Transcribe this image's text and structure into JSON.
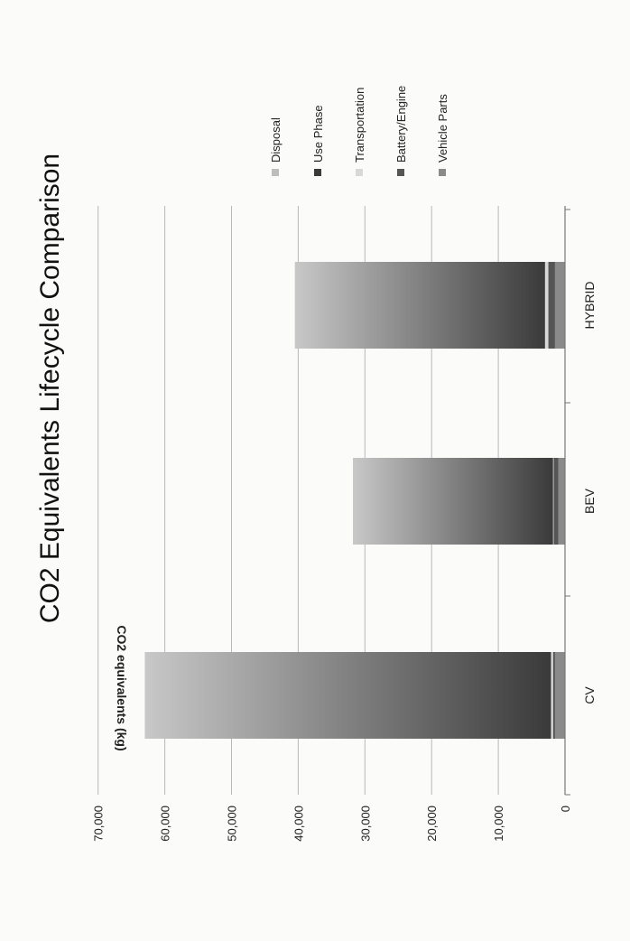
{
  "chart_data": {
    "type": "bar",
    "stacked": true,
    "orientation": "rotated-90-clockwise",
    "title": "CO2 Equivalents Lifecycle Comparison",
    "ylabel": "CO2 equivalents (kg)",
    "xlabel": "",
    "ylim": [
      0,
      70000
    ],
    "yticks": [
      "0",
      "10,000",
      "20,000",
      "30,000",
      "40,000",
      "50,000",
      "60,000",
      "70,000"
    ],
    "grid": true,
    "legend_position": "right",
    "categories": [
      "CV",
      "BEV",
      "HYBRID"
    ],
    "series": [
      {
        "name": "Vehicle Parts",
        "color": "#8a8a8a",
        "values": [
          1500,
          1000,
          1500
        ]
      },
      {
        "name": "Battery/Engine",
        "color": "#555555",
        "values": [
          300,
          700,
          1000
        ]
      },
      {
        "name": "Transportation",
        "color": "#d8d8d8",
        "values": [
          300,
          100,
          500
        ]
      },
      {
        "name": "Use Phase",
        "color": "#3a3a3a",
        "values": [
          60900,
          30000,
          37500
        ]
      },
      {
        "name": "Disposal",
        "color": "#bdbdbd",
        "values": [
          0,
          0,
          0
        ]
      }
    ]
  }
}
